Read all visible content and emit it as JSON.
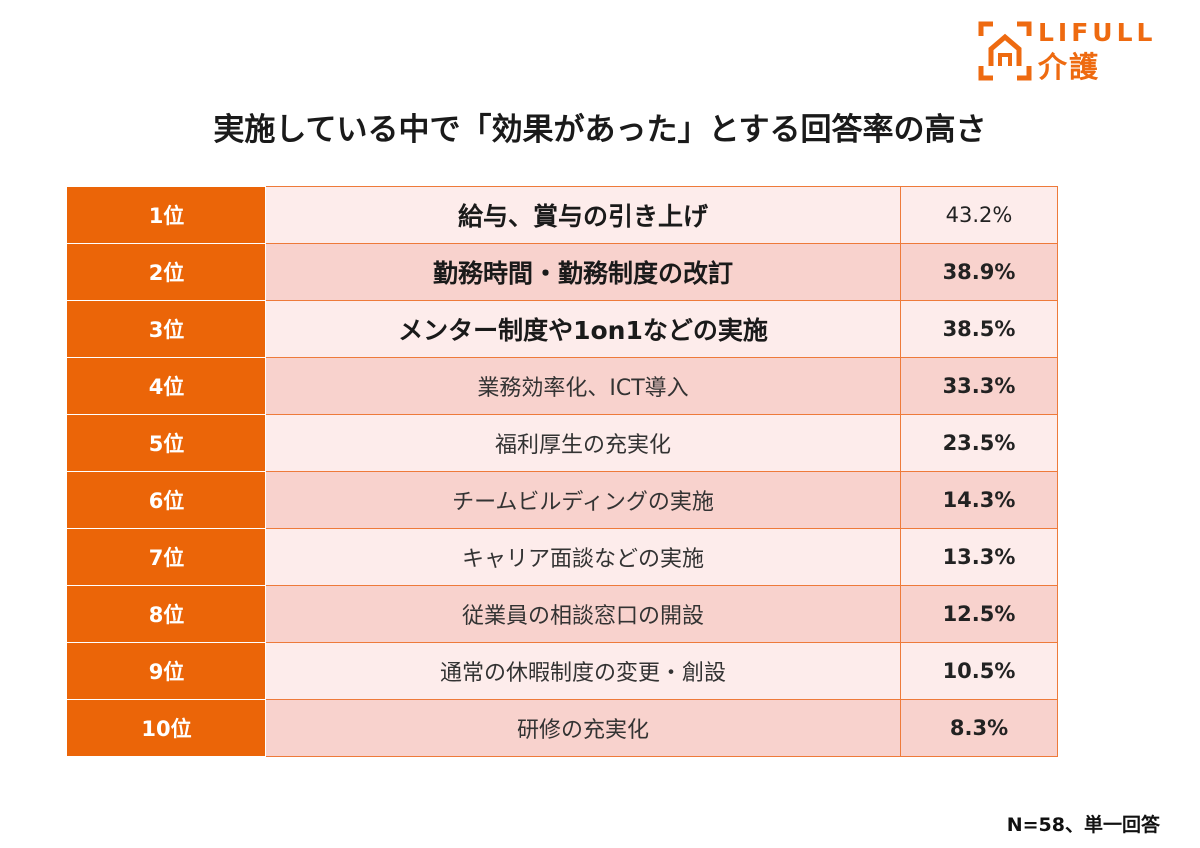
{
  "logo": {
    "brand_top": "LIFULL",
    "brand_bottom": "介護",
    "icon": "house-bracket-icon",
    "color": "#ee6a10"
  },
  "title": "実施している中で「効果があった」とする回答率の高さ",
  "footnote": "N=58、単一回答",
  "colors": {
    "rank_bg": "#eb6508",
    "row_light": "#fdeceb",
    "row_dark": "#f8d2cd",
    "border": "#ee7a3a"
  },
  "chart_data": {
    "type": "table",
    "rows": [
      {
        "rank": "1位",
        "item": "給与、賞与の引き上げ",
        "value": "43.2%"
      },
      {
        "rank": "2位",
        "item": "勤務時間・勤務制度の改訂",
        "value": "38.9%"
      },
      {
        "rank": "3位",
        "item": "メンター制度や1on1などの実施",
        "value": "38.5%"
      },
      {
        "rank": "4位",
        "item": "業務効率化、ICT導入",
        "value": "33.3%"
      },
      {
        "rank": "5位",
        "item": "福利厚生の充実化",
        "value": "23.5%"
      },
      {
        "rank": "6位",
        "item": "チームビルディングの実施",
        "value": "14.3%"
      },
      {
        "rank": "7位",
        "item": "キャリア面談などの実施",
        "value": "13.3%"
      },
      {
        "rank": "8位",
        "item": "従業員の相談窓口の開設",
        "value": "12.5%"
      },
      {
        "rank": "9位",
        "item": "通常の休暇制度の変更・創設",
        "value": "10.5%"
      },
      {
        "rank": "10位",
        "item": "研修の充実化",
        "value": "8.3%"
      }
    ]
  }
}
